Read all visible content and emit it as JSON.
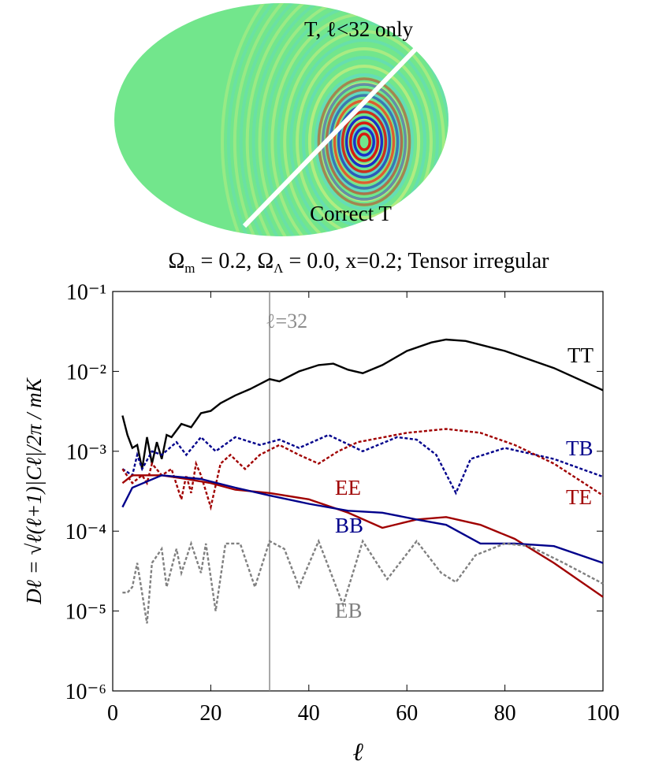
{
  "map": {
    "labels": [
      "T, ℓ<32 only",
      "Correct T"
    ]
  },
  "chart_data": {
    "type": "line",
    "title": [
      "Ω",
      "m",
      " = 0.2, Ω",
      "Λ",
      " = 0.0, x=0.2; Tensor irregular"
    ],
    "xlabel": "ℓ",
    "ylabel": "Dℓ = √ℓ(ℓ+1)|Cℓ|/2π / mK",
    "yscale": "log",
    "xlim": [
      0,
      100
    ],
    "xticks": [
      0,
      20,
      40,
      60,
      80,
      100
    ],
    "ylim": [
      1e-06,
      0.1
    ],
    "yticks": [
      {
        "value": 1e-06,
        "label": "10⁻⁶"
      },
      {
        "value": 1e-05,
        "label": "10⁻⁵"
      },
      {
        "value": 0.0001,
        "label": "10⁻⁴"
      },
      {
        "value": 0.001,
        "label": "10⁻³"
      },
      {
        "value": 0.01,
        "label": "10⁻²"
      },
      {
        "value": 0.1,
        "label": "10⁻¹"
      }
    ],
    "vline": {
      "x": 32,
      "label": "ℓ=32",
      "color": "#8c8c8c"
    },
    "series": [
      {
        "name": "TT",
        "color": "#000000",
        "style": "solid",
        "x": [
          2,
          3,
          4,
          5,
          6,
          7,
          8,
          9,
          10,
          11,
          12,
          14,
          16,
          18,
          20,
          22,
          25,
          28,
          32,
          34,
          38,
          42,
          45,
          48,
          51,
          55,
          60,
          65,
          68,
          72,
          80,
          90,
          100
        ],
        "values": [
          0.0028,
          0.0016,
          0.0011,
          0.0012,
          0.0006,
          0.0015,
          0.0007,
          0.0013,
          0.0008,
          0.0016,
          0.0015,
          0.0022,
          0.002,
          0.003,
          0.0032,
          0.004,
          0.005,
          0.006,
          0.008,
          0.0075,
          0.01,
          0.012,
          0.0125,
          0.0105,
          0.0095,
          0.012,
          0.018,
          0.023,
          0.025,
          0.024,
          0.018,
          0.011,
          0.0058
        ]
      },
      {
        "name": "TB",
        "color": "#00008b",
        "style": "dotted",
        "x": [
          2,
          4,
          5,
          6,
          8,
          10,
          13,
          15,
          18,
          21,
          25,
          30,
          34,
          38,
          44,
          51,
          58,
          62,
          66,
          70,
          73,
          80,
          90,
          100
        ],
        "values": [
          0.0006,
          0.0005,
          0.0009,
          0.0006,
          0.001,
          0.0009,
          0.0013,
          0.0009,
          0.0015,
          0.001,
          0.0015,
          0.0012,
          0.0014,
          0.0011,
          0.0016,
          0.001,
          0.0015,
          0.0014,
          0.0009,
          0.0003,
          0.0008,
          0.0011,
          0.0008,
          0.00048
        ]
      },
      {
        "name": "TE",
        "color": "#a00000",
        "style": "dotted",
        "x": [
          2,
          4,
          6,
          7,
          8,
          10,
          12,
          14,
          15,
          16,
          17,
          18,
          20,
          22,
          24,
          27,
          30,
          34,
          38,
          42,
          46,
          50,
          60,
          68,
          75,
          82,
          90,
          100
        ],
        "values": [
          0.0006,
          0.0004,
          0.0005,
          0.0004,
          0.0007,
          0.0005,
          0.0006,
          0.00025,
          0.0005,
          0.0003,
          0.0007,
          0.0005,
          0.0002,
          0.0007,
          0.0009,
          0.0006,
          0.0009,
          0.0012,
          0.0009,
          0.0007,
          0.001,
          0.0013,
          0.0017,
          0.0019,
          0.0017,
          0.0012,
          0.0007,
          0.00028
        ]
      },
      {
        "name": "EE",
        "color": "#a00000",
        "style": "solid",
        "x": [
          2,
          4,
          10,
          15,
          20,
          25,
          32,
          40,
          48,
          55,
          62,
          68,
          75,
          82,
          90,
          100
        ],
        "values": [
          0.0004,
          0.0005,
          0.0005,
          0.00045,
          0.0004,
          0.00033,
          0.0003,
          0.00025,
          0.00017,
          0.00011,
          0.00014,
          0.00015,
          0.00012,
          8e-05,
          4e-05,
          1.5e-05
        ]
      },
      {
        "name": "BB",
        "color": "#00008b",
        "style": "solid",
        "x": [
          2,
          4,
          10,
          18,
          25,
          32,
          40,
          48,
          55,
          62,
          68,
          75,
          82,
          90,
          100
        ],
        "values": [
          0.0002,
          0.00035,
          0.0005,
          0.00045,
          0.00035,
          0.00028,
          0.00022,
          0.00018,
          0.00017,
          0.00014,
          0.00012,
          7e-05,
          7e-05,
          6.5e-05,
          4e-05
        ]
      },
      {
        "name": "EB",
        "color": "#808080",
        "style": "dotted",
        "x": [
          2,
          3,
          4,
          5,
          7,
          8,
          10,
          11,
          13,
          14,
          16,
          18,
          19,
          21,
          23,
          26,
          29,
          32,
          35,
          38,
          42,
          47,
          51,
          56,
          62,
          67,
          70,
          74,
          80,
          85,
          92,
          100
        ],
        "values": [
          1.7e-05,
          1.7e-05,
          2e-05,
          4e-05,
          7e-06,
          4e-05,
          6e-05,
          2e-05,
          6e-05,
          3e-05,
          7e-05,
          3e-05,
          7e-05,
          1e-05,
          7e-05,
          7e-05,
          2e-05,
          7.5e-05,
          6e-05,
          2e-05,
          7.5e-05,
          1.2e-05,
          7.5e-05,
          2.5e-05,
          7.5e-05,
          3e-05,
          2.3e-05,
          5e-05,
          7e-05,
          6.5e-05,
          4e-05,
          2.2e-05
        ]
      }
    ]
  }
}
